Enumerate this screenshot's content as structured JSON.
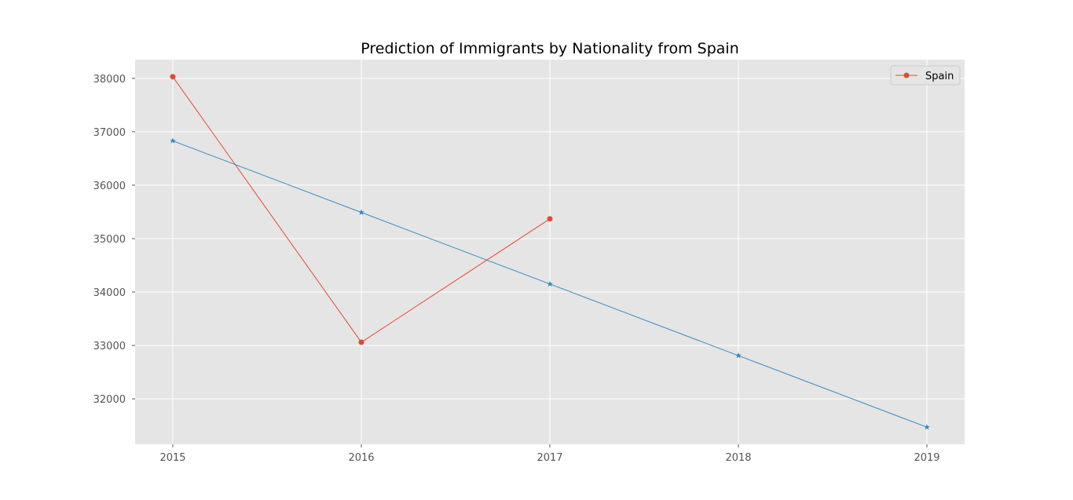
{
  "chart_data": {
    "type": "line",
    "title": "Prediction of Immigrants by Nationality from Spain",
    "xlabel": "",
    "ylabel": "",
    "x_ticks": [
      "2015",
      "2016",
      "2017",
      "2018",
      "2019"
    ],
    "y_ticks": [
      32000,
      33000,
      34000,
      35000,
      36000,
      37000,
      38000
    ],
    "xlim": [
      2014.8,
      2019.2
    ],
    "ylim": [
      31150,
      38350
    ],
    "grid": true,
    "legend_position": "top-right",
    "series": [
      {
        "name": "Spain",
        "marker": "circle",
        "color": "#E24A33",
        "x": [
          2015,
          2016,
          2017
        ],
        "y": [
          38030,
          33060,
          35370
        ]
      },
      {
        "marker": "star",
        "color": "#348ABD",
        "x": [
          2015,
          2016,
          2017,
          2018,
          2019
        ],
        "y": [
          36830,
          35490,
          34150,
          32810,
          31470
        ]
      }
    ],
    "colors": {
      "background": "#E5E5E5",
      "grid": "#FFFFFF"
    }
  }
}
